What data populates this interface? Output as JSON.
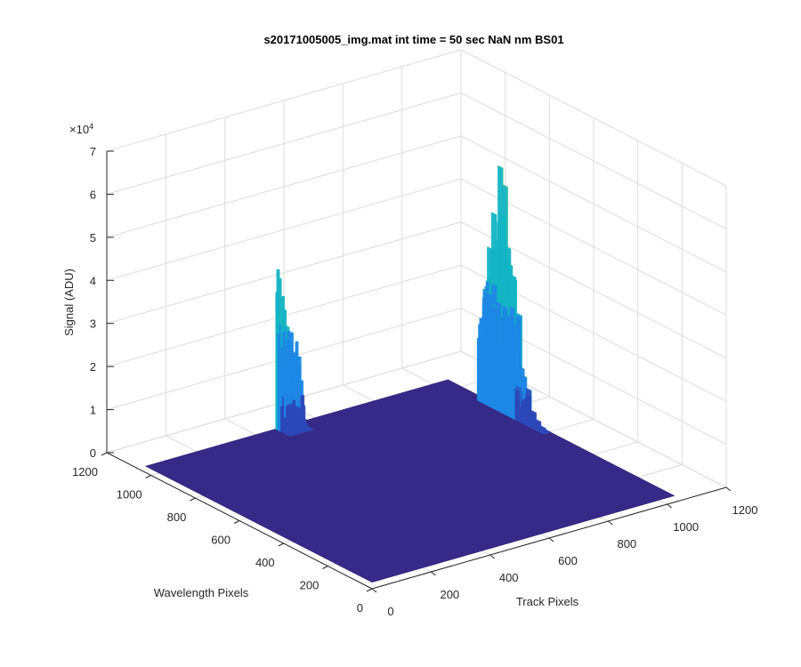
{
  "chart_data": {
    "type": "surface",
    "title": "s20171005005_img.mat int time = 50 sec  NaN nm BS01",
    "xlabel": "Track Pixels",
    "ylabel": "Wavelength Pixels",
    "zlabel": "Signal (ADU)",
    "z_exponent_label": "×10",
    "z_exponent_power": "4",
    "xlim": [
      0,
      1200
    ],
    "ylim": [
      0,
      1200
    ],
    "zlim": [
      0,
      70000
    ],
    "x_ticks": [
      0,
      200,
      400,
      600,
      800,
      1000,
      1200
    ],
    "y_ticks": [
      0,
      200,
      400,
      600,
      800,
      1000,
      1200
    ],
    "z_ticks": [
      0,
      10000,
      20000,
      30000,
      40000,
      50000,
      60000,
      70000
    ],
    "x_tick_labels": [
      "0",
      "200",
      "400",
      "600",
      "800",
      "1000",
      "1200"
    ],
    "y_tick_labels": [
      "0",
      "200",
      "400",
      "600",
      "800",
      "1000",
      "1200"
    ],
    "z_tick_labels": [
      "0",
      "1",
      "2",
      "3",
      "4",
      "5",
      "6",
      "7"
    ],
    "grid": true,
    "surface_extent": {
      "x": [
        0,
        1024
      ],
      "y": [
        0,
        1024
      ]
    },
    "baseline_signal": 1500,
    "peaks": [
      {
        "x_range": [
          440,
          520
        ],
        "y_range": [
          960,
          1024
        ],
        "max_signal": 40000
      },
      {
        "x_range": [
          1000,
          1024
        ],
        "y_range": [
          560,
          860
        ],
        "max_signal": 60000
      }
    ],
    "colors": {
      "baseline": "#352a87",
      "low": "#2d48b8",
      "mid": "#1e88e5",
      "high": "#14b5c4",
      "peak": "#5cc98a",
      "grid": "#dcdcdc",
      "axis": "#262626"
    }
  }
}
